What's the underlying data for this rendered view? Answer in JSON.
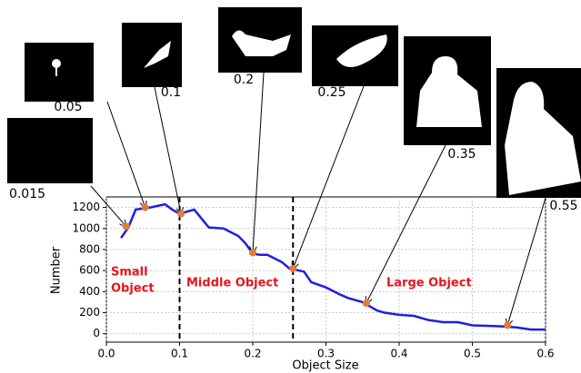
{
  "chart_data": {
    "type": "line",
    "x_label": "Object Size",
    "y_label": "Number",
    "x": [
      0.02,
      0.03,
      0.04,
      0.05,
      0.06,
      0.08,
      0.09,
      0.1,
      0.12,
      0.14,
      0.16,
      0.18,
      0.19,
      0.2,
      0.21,
      0.22,
      0.24,
      0.25,
      0.27,
      0.28,
      0.3,
      0.32,
      0.33,
      0.35,
      0.37,
      0.38,
      0.4,
      0.42,
      0.44,
      0.46,
      0.48,
      0.5,
      0.52,
      0.54,
      0.56,
      0.58,
      0.6
    ],
    "series": [
      {
        "color": "#1f1fe0",
        "values": [
          910,
          1010,
          1180,
          1190,
          1200,
          1230,
          1180,
          1140,
          1180,
          1010,
          1000,
          930,
          860,
          760,
          750,
          750,
          680,
          620,
          590,
          490,
          440,
          370,
          340,
          300,
          220,
          200,
          180,
          170,
          130,
          110,
          110,
          80,
          75,
          70,
          60,
          40,
          40
        ]
      }
    ],
    "highlights": {
      "color": "#e07b39",
      "x": [
        0.027,
        0.053,
        0.102,
        0.2,
        0.255,
        0.355,
        0.548
      ],
      "y": [
        1020,
        1200,
        1140,
        770,
        620,
        290,
        80
      ]
    },
    "dividers": [
      0.1,
      0.255
    ],
    "regions": [
      {
        "label": "Small",
        "label2": "Object"
      },
      {
        "label": "Middle Object"
      },
      {
        "label": "Large Object"
      }
    ],
    "annotations": [
      "0.015",
      "0.05",
      "0.1",
      "0.2",
      "0.25",
      "0.35",
      "0.55"
    ],
    "xlim": [
      0,
      0.6
    ],
    "ylim": [
      -80,
      1300
    ],
    "xticks": [
      {
        "value": 0,
        "label": "0.0"
      },
      0.1,
      0.2,
      0.3,
      0.4,
      0.5,
      0.6
    ],
    "yticks": [
      0,
      200,
      400,
      600,
      800,
      1000,
      1200
    ],
    "grid": true
  }
}
